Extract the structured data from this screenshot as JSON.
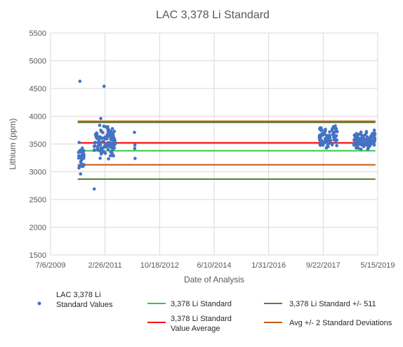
{
  "chart_data": {
    "type": "scatter",
    "title": "LAC 3,378 Li Standard",
    "xlabel": "Date of Analysis",
    "ylabel": "Lithium (ppm)",
    "ylim": [
      1500,
      5500
    ],
    "yticks": [
      "1500",
      "2000",
      "2500",
      "3000",
      "3500",
      "4000",
      "4500",
      "5000",
      "5500"
    ],
    "xlim": [
      "2009-07-06",
      "2019-05-15"
    ],
    "xticks": [
      "7/6/2009",
      "2/26/2011",
      "10/18/2012",
      "6/10/2014",
      "1/31/2016",
      "9/22/2017",
      "5/15/2019"
    ],
    "grid": true,
    "legend_position": "bottom",
    "series": [
      {
        "name": "LAC 3,378 Li Standard Values",
        "kind": "points",
        "color": "#4472C4",
        "clusters": [
          {
            "x_start": "2010-05-10",
            "x_end": "2010-07-20",
            "y_min": 2950,
            "y_max": 3620
          },
          {
            "x_start": "2010-10-20",
            "x_end": "2011-06-20",
            "y_min": 3150,
            "y_max": 3950
          },
          {
            "x_start": "2017-08-10",
            "x_end": "2018-02-25",
            "y_min": 3350,
            "y_max": 3900
          },
          {
            "x_start": "2018-08-25",
            "x_end": "2019-04-15",
            "y_min": 3350,
            "y_max": 3800
          }
        ],
        "points": [
          {
            "x": "2010-05-25",
            "y": 4630
          },
          {
            "x": "2011-02-15",
            "y": 4540
          },
          {
            "x": "2010-10-30",
            "y": 2690
          },
          {
            "x": "2010-06-01",
            "y": 2960
          },
          {
            "x": "2010-05-20",
            "y": 3100
          },
          {
            "x": "2011-01-10",
            "y": 3960
          },
          {
            "x": "2012-01-15",
            "y": 3710
          },
          {
            "x": "2012-01-20",
            "y": 3480
          },
          {
            "x": "2012-01-18",
            "y": 3420
          },
          {
            "x": "2012-01-22",
            "y": 3240
          }
        ]
      },
      {
        "name": "3,378 Li Standard",
        "kind": "hline",
        "y": 3378,
        "color": "#2ECC40",
        "x_start": "2010-05-01",
        "x_end": "2019-04-20"
      },
      {
        "name": "3,378 Li Standard Value Average",
        "kind": "hline",
        "y": 3520,
        "color": "#FF0000",
        "x_start": "2010-05-01",
        "x_end": "2019-04-20"
      },
      {
        "name": "3,378 Li Standard +/- 511",
        "kind": "hline_pair",
        "y": [
          2867,
          3889
        ],
        "color": "#548235",
        "x_start": "2010-05-01",
        "x_end": "2019-04-20"
      },
      {
        "name": "Avg +/- 2 Standard Deviations",
        "kind": "hline_pair",
        "y": [
          3125,
          3910
        ],
        "color": "#C55A11",
        "x_start": "2010-05-01",
        "x_end": "2019-04-20"
      }
    ],
    "legend": [
      {
        "label_lines": [
          "LAC 3,378 Li",
          "Standard Values"
        ],
        "kind": "dot",
        "color": "#4472C4"
      },
      {
        "label_lines": [
          "3,378 Li Standard"
        ],
        "kind": "line",
        "color": "#2ECC40"
      },
      {
        "label_lines": [
          "3,378 Li Standard +/- 511"
        ],
        "kind": "line",
        "color": "#548235"
      },
      {
        "label_lines": [
          "3,378 Li Standard",
          "Value Average"
        ],
        "kind": "line",
        "color": "#FF0000"
      },
      {
        "label_lines": [
          "Avg +/- 2 Standard Deviations"
        ],
        "kind": "line",
        "color": "#C55A11"
      }
    ]
  }
}
